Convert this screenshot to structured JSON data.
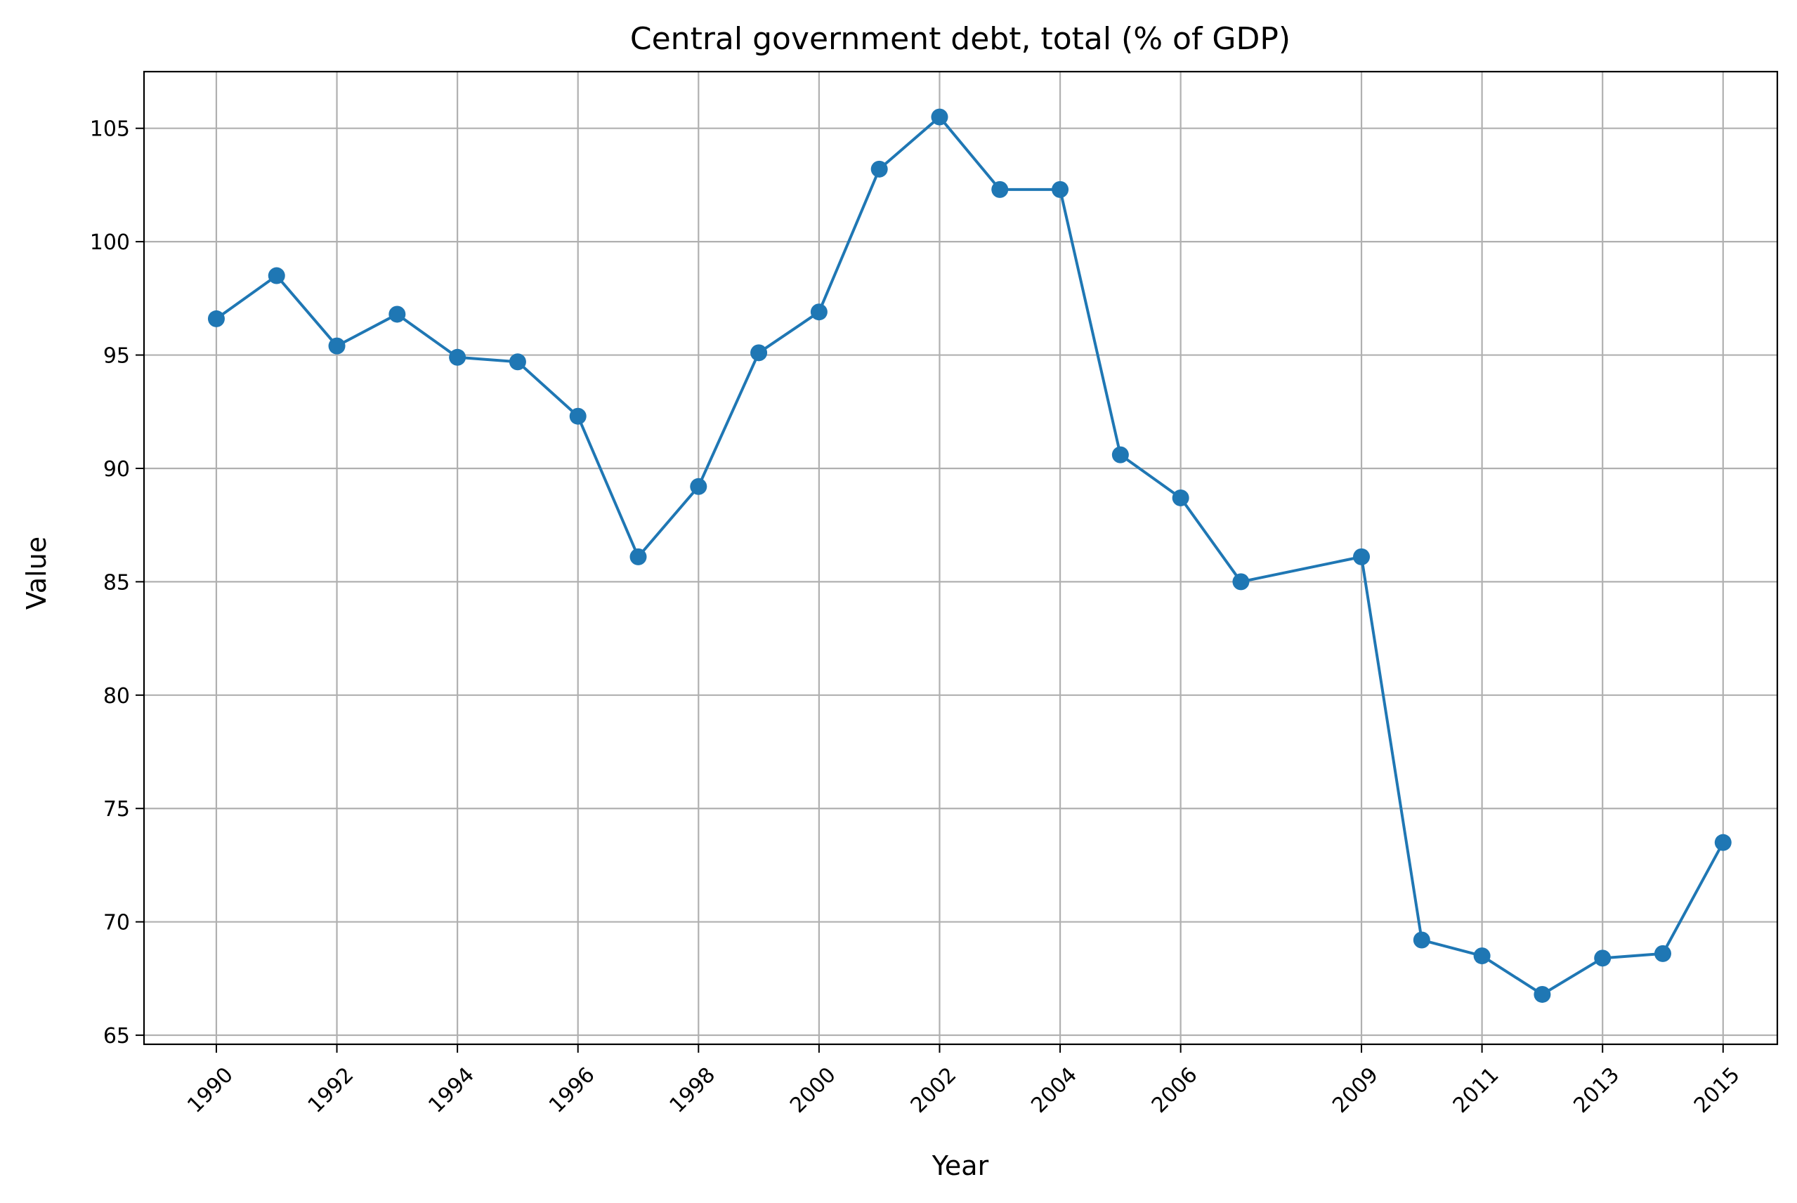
{
  "chart_data": {
    "type": "line",
    "title": "Central government debt, total (% of GDP)",
    "xlabel": "Year",
    "ylabel": "Value",
    "x": [
      1990,
      1991,
      1992,
      1993,
      1994,
      1995,
      1996,
      1997,
      1998,
      1999,
      2000,
      2001,
      2002,
      2003,
      2004,
      2005,
      2006,
      2007,
      2009,
      2010,
      2011,
      2012,
      2013,
      2014,
      2015
    ],
    "x_tick_labels": [
      "1990",
      "1992",
      "1994",
      "1996",
      "1998",
      "2000",
      "2002",
      "2004",
      "2006",
      "2009",
      "2011",
      "2013",
      "2015"
    ],
    "x_tick_label_rotation_deg": 45,
    "series": [
      {
        "values": [
          96.6,
          98.5,
          95.4,
          96.8,
          94.9,
          94.7,
          92.3,
          86.1,
          89.2,
          95.1,
          96.9,
          103.2,
          105.5,
          102.3,
          102.3,
          90.6,
          88.7,
          85.0,
          86.1,
          69.2,
          68.5,
          66.8,
          68.4,
          68.6,
          73.5
        ],
        "color": "#1f77b4",
        "marker": "circle"
      }
    ],
    "ylim": [
      64.6,
      107.5
    ],
    "y_ticks": [
      65,
      70,
      75,
      80,
      85,
      90,
      95,
      100,
      105
    ],
    "grid": true,
    "legend": "none"
  }
}
